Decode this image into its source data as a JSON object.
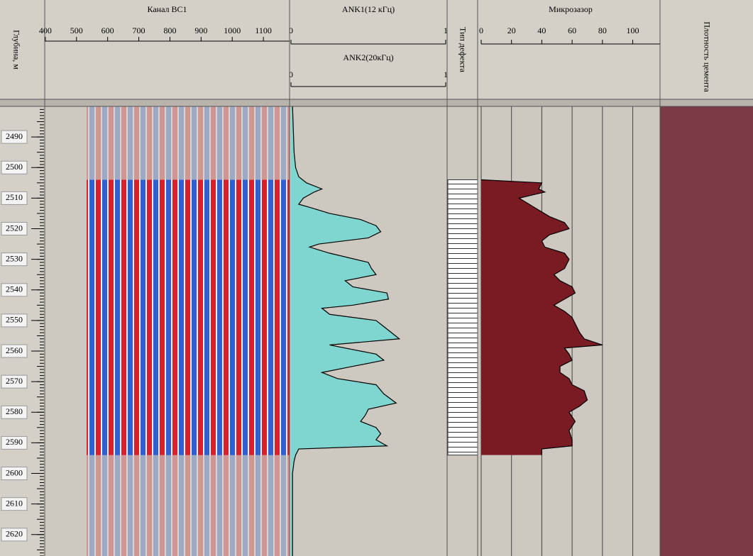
{
  "depth": {
    "title": "Глубина, м",
    "ylim": [
      2480,
      2627
    ],
    "yticks": [
      2490,
      2500,
      2510,
      2520,
      2530,
      2540,
      2550,
      2560,
      2570,
      2580,
      2590,
      2600,
      2610,
      2620
    ]
  },
  "defect": {
    "title": "Тип дефекта",
    "interval": [
      2504,
      2594
    ]
  },
  "density": {
    "title": "Плотность цемента"
  },
  "chart_data": [
    {
      "type": "wave",
      "title": "Канал ВС1",
      "xlim": [
        398,
        1184
      ],
      "xticks": [
        400,
        500,
        600,
        700,
        800,
        900,
        1000,
        1100
      ]
    },
    {
      "type": "area",
      "title": "ANK1(12 кГц)",
      "xlim": [
        0,
        1
      ],
      "xticks": [
        0,
        1
      ],
      "color": "#7fd6d0",
      "scale2": {
        "title": "ANK2(20кГц)",
        "xlim": [
          0,
          1
        ],
        "xticks": [
          0,
          1
        ]
      },
      "depths": [
        2480,
        2495,
        2500,
        2503,
        2505,
        2507,
        2508,
        2510,
        2512,
        2513,
        2515,
        2517,
        2519,
        2521,
        2523,
        2525,
        2526,
        2528,
        2531,
        2533,
        2535,
        2537,
        2539,
        2541,
        2543,
        2545,
        2546,
        2548,
        2550,
        2552,
        2554,
        2556,
        2558,
        2561,
        2563,
        2565,
        2567,
        2569,
        2571,
        2574,
        2577,
        2579,
        2581,
        2583,
        2585,
        2587,
        2589,
        2591,
        2592,
        2594,
        2596,
        2600,
        2627
      ],
      "values": [
        0.01,
        0.02,
        0.03,
        0.05,
        0.1,
        0.2,
        0.15,
        0.08,
        0.05,
        0.12,
        0.25,
        0.45,
        0.55,
        0.58,
        0.5,
        0.18,
        0.12,
        0.25,
        0.5,
        0.52,
        0.55,
        0.35,
        0.4,
        0.62,
        0.63,
        0.4,
        0.2,
        0.25,
        0.55,
        0.6,
        0.65,
        0.7,
        0.25,
        0.55,
        0.6,
        0.4,
        0.2,
        0.3,
        0.55,
        0.6,
        0.68,
        0.5,
        0.48,
        0.45,
        0.55,
        0.58,
        0.55,
        0.62,
        0.05,
        0.03,
        0.02,
        0.01,
        0.01
      ]
    },
    {
      "type": "area",
      "title": "Микрозазор",
      "xlim": [
        0,
        118
      ],
      "xticks": [
        0,
        20,
        40,
        60,
        80,
        100
      ],
      "color": "#7a1a22",
      "grid": true,
      "depths": [
        2504,
        2505,
        2507,
        2508,
        2510,
        2513,
        2516,
        2518,
        2520,
        2522,
        2524,
        2526,
        2528,
        2530,
        2533,
        2535,
        2537,
        2539,
        2541,
        2543,
        2545,
        2547,
        2549,
        2551,
        2554,
        2556,
        2558,
        2559,
        2561,
        2563,
        2565,
        2567,
        2569,
        2571,
        2573,
        2576,
        2578,
        2580,
        2583,
        2586,
        2589,
        2591,
        2592,
        2594
      ],
      "values": [
        0,
        40,
        38,
        42,
        25,
        35,
        45,
        55,
        58,
        45,
        40,
        42,
        55,
        58,
        55,
        48,
        52,
        60,
        62,
        55,
        48,
        55,
        60,
        62,
        65,
        68,
        80,
        55,
        58,
        60,
        52,
        52,
        58,
        60,
        68,
        70,
        65,
        58,
        62,
        58,
        60,
        60,
        40,
        40
      ]
    }
  ]
}
